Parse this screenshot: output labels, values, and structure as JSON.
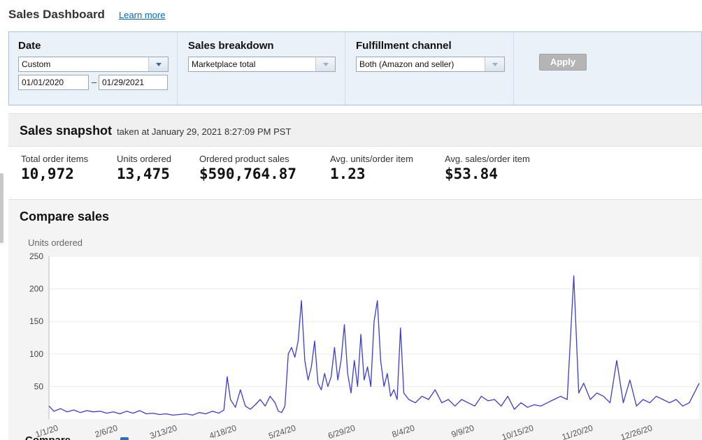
{
  "header": {
    "title": "Sales Dashboard",
    "learn_more": "Learn more"
  },
  "filters": {
    "date": {
      "label": "Date",
      "selected": "Custom",
      "start": "01/01/2020",
      "separator": "–",
      "end": "01/29/2021"
    },
    "sales_breakdown": {
      "label": "Sales breakdown",
      "selected": "Marketplace total"
    },
    "fulfillment_channel": {
      "label": "Fulfillment channel",
      "selected": "Both (Amazon and seller)"
    },
    "apply_label": "Apply"
  },
  "snapshot": {
    "title": "Sales snapshot",
    "subtitle": "taken at January 29, 2021 8:27:09 PM PST",
    "metrics": [
      {
        "label": "Total order items",
        "value": "10,972"
      },
      {
        "label": "Units ordered",
        "value": "13,475"
      },
      {
        "label": "Ordered product sales",
        "value": "$590,764.87"
      },
      {
        "label": "Avg. units/order item",
        "value": "1.23"
      },
      {
        "label": "Avg. sales/order item",
        "value": "$53.84"
      }
    ]
  },
  "compare": {
    "title": "Compare sales",
    "footer_label": "Compare"
  },
  "colors": {
    "line": "#3b3bd6",
    "accent": "#2d6fb7",
    "link": "#0066c0"
  },
  "chart_data": {
    "type": "line",
    "ylabel": "Units ordered",
    "ylim": [
      0,
      250
    ],
    "yticks": [
      50,
      100,
      150,
      200,
      250
    ],
    "x_tick_labels": [
      "1/1/20",
      "2/6/20",
      "3/13/20",
      "4/18/20",
      "5/24/20",
      "6/29/20",
      "8/4/20",
      "9/9/20",
      "10/15/20",
      "11/20/20",
      "12/26/20"
    ],
    "x_start": "2020-01-01",
    "x_end": "2021-01-29",
    "grid": "horizontal",
    "series": [
      {
        "name": "",
        "points": [
          [
            "2020-01-01",
            20
          ],
          [
            "2020-01-04",
            12
          ],
          [
            "2020-01-08",
            16
          ],
          [
            "2020-01-12",
            11
          ],
          [
            "2020-01-16",
            14
          ],
          [
            "2020-01-20",
            10
          ],
          [
            "2020-01-24",
            13
          ],
          [
            "2020-01-28",
            11
          ],
          [
            "2020-02-01",
            12
          ],
          [
            "2020-02-05",
            9
          ],
          [
            "2020-02-09",
            11
          ],
          [
            "2020-02-13",
            8
          ],
          [
            "2020-02-17",
            12
          ],
          [
            "2020-02-21",
            9
          ],
          [
            "2020-02-25",
            13
          ],
          [
            "2020-02-29",
            8
          ],
          [
            "2020-03-04",
            9
          ],
          [
            "2020-03-08",
            7
          ],
          [
            "2020-03-12",
            8
          ],
          [
            "2020-03-16",
            6
          ],
          [
            "2020-03-20",
            7
          ],
          [
            "2020-03-24",
            8
          ],
          [
            "2020-03-28",
            6
          ],
          [
            "2020-04-01",
            10
          ],
          [
            "2020-04-05",
            8
          ],
          [
            "2020-04-09",
            12
          ],
          [
            "2020-04-13",
            9
          ],
          [
            "2020-04-16",
            14
          ],
          [
            "2020-04-18",
            65
          ],
          [
            "2020-04-20",
            30
          ],
          [
            "2020-04-23",
            18
          ],
          [
            "2020-04-26",
            45
          ],
          [
            "2020-04-29",
            20
          ],
          [
            "2020-05-02",
            15
          ],
          [
            "2020-05-05",
            22
          ],
          [
            "2020-05-08",
            30
          ],
          [
            "2020-05-11",
            20
          ],
          [
            "2020-05-14",
            35
          ],
          [
            "2020-05-17",
            25
          ],
          [
            "2020-05-19",
            12
          ],
          [
            "2020-05-21",
            10
          ],
          [
            "2020-05-23",
            20
          ],
          [
            "2020-05-25",
            100
          ],
          [
            "2020-05-27",
            110
          ],
          [
            "2020-05-29",
            95
          ],
          [
            "2020-05-31",
            120
          ],
          [
            "2020-06-02",
            182
          ],
          [
            "2020-06-04",
            90
          ],
          [
            "2020-06-06",
            60
          ],
          [
            "2020-06-08",
            80
          ],
          [
            "2020-06-10",
            120
          ],
          [
            "2020-06-12",
            55
          ],
          [
            "2020-06-14",
            45
          ],
          [
            "2020-06-16",
            70
          ],
          [
            "2020-06-18",
            50
          ],
          [
            "2020-06-20",
            65
          ],
          [
            "2020-06-22",
            110
          ],
          [
            "2020-06-24",
            60
          ],
          [
            "2020-06-26",
            90
          ],
          [
            "2020-06-28",
            145
          ],
          [
            "2020-06-30",
            70
          ],
          [
            "2020-07-02",
            40
          ],
          [
            "2020-07-04",
            90
          ],
          [
            "2020-07-06",
            50
          ],
          [
            "2020-07-08",
            130
          ],
          [
            "2020-07-10",
            60
          ],
          [
            "2020-07-12",
            80
          ],
          [
            "2020-07-14",
            50
          ],
          [
            "2020-07-16",
            150
          ],
          [
            "2020-07-18",
            182
          ],
          [
            "2020-07-20",
            90
          ],
          [
            "2020-07-22",
            50
          ],
          [
            "2020-07-24",
            70
          ],
          [
            "2020-07-26",
            35
          ],
          [
            "2020-07-28",
            45
          ],
          [
            "2020-07-30",
            30
          ],
          [
            "2020-08-01",
            140
          ],
          [
            "2020-08-03",
            40
          ],
          [
            "2020-08-06",
            30
          ],
          [
            "2020-08-10",
            25
          ],
          [
            "2020-08-14",
            35
          ],
          [
            "2020-08-18",
            30
          ],
          [
            "2020-08-22",
            45
          ],
          [
            "2020-08-26",
            25
          ],
          [
            "2020-08-30",
            30
          ],
          [
            "2020-09-03",
            20
          ],
          [
            "2020-09-07",
            30
          ],
          [
            "2020-09-11",
            25
          ],
          [
            "2020-09-15",
            20
          ],
          [
            "2020-09-19",
            35
          ],
          [
            "2020-09-23",
            28
          ],
          [
            "2020-09-27",
            30
          ],
          [
            "2020-10-01",
            20
          ],
          [
            "2020-10-05",
            35
          ],
          [
            "2020-10-09",
            15
          ],
          [
            "2020-10-13",
            25
          ],
          [
            "2020-10-17",
            18
          ],
          [
            "2020-10-21",
            22
          ],
          [
            "2020-10-25",
            20
          ],
          [
            "2020-10-29",
            25
          ],
          [
            "2020-11-02",
            30
          ],
          [
            "2020-11-06",
            35
          ],
          [
            "2020-11-10",
            30
          ],
          [
            "2020-11-14",
            220
          ],
          [
            "2020-11-17",
            40
          ],
          [
            "2020-11-20",
            55
          ],
          [
            "2020-11-24",
            30
          ],
          [
            "2020-11-28",
            40
          ],
          [
            "2020-12-02",
            35
          ],
          [
            "2020-12-06",
            25
          ],
          [
            "2020-12-10",
            90
          ],
          [
            "2020-12-14",
            25
          ],
          [
            "2020-12-18",
            60
          ],
          [
            "2020-12-22",
            20
          ],
          [
            "2020-12-26",
            30
          ],
          [
            "2020-12-30",
            25
          ],
          [
            "2021-01-03",
            35
          ],
          [
            "2021-01-07",
            30
          ],
          [
            "2021-01-11",
            25
          ],
          [
            "2021-01-15",
            30
          ],
          [
            "2021-01-19",
            20
          ],
          [
            "2021-01-23",
            25
          ],
          [
            "2021-01-29",
            55
          ]
        ]
      }
    ]
  }
}
